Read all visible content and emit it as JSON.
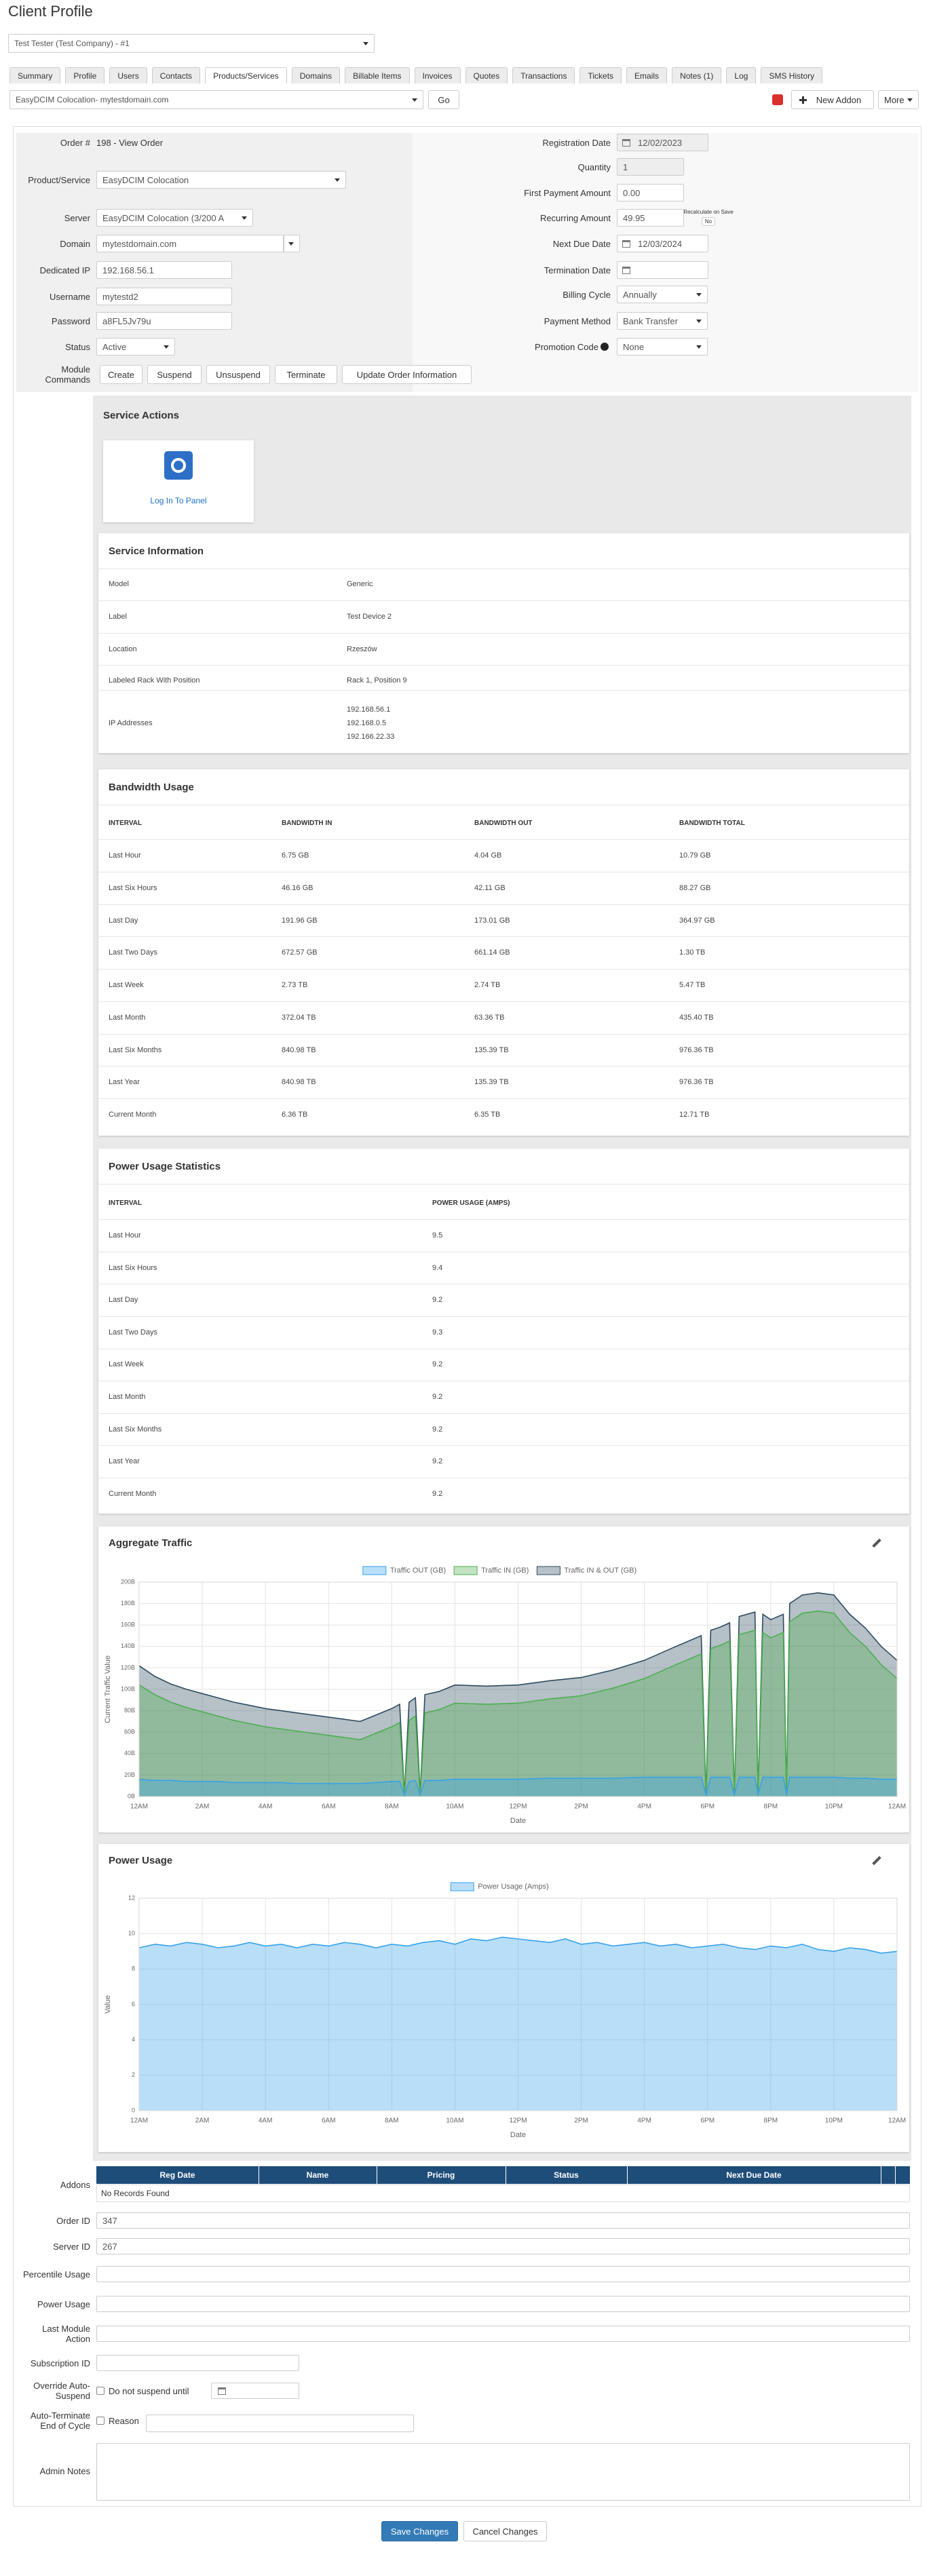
{
  "header": {
    "title": "Client Profile",
    "client_select": "Test Tester (Test Company) - #1"
  },
  "tabs": [
    "Summary",
    "Profile",
    "Users",
    "Contacts",
    "Products/Services",
    "Domains",
    "Billable Items",
    "Invoices",
    "Quotes",
    "Transactions",
    "Tickets",
    "Emails",
    "Notes (1)",
    "Log",
    "SMS History"
  ],
  "toolbar": {
    "service_select": "EasyDCIM Colocation- mytestdomain.com",
    "go": "Go",
    "new_addon": "New Addon",
    "more": "More"
  },
  "form": {
    "left": [
      {
        "label": "Order #",
        "value": "198 - View Order"
      },
      {
        "label": "Product/Service",
        "value": "EasyDCIM Colocation"
      },
      {
        "label": "Server",
        "value": "EasyDCIM Colocation (3/200 A"
      },
      {
        "label": "Domain",
        "value": "mytestdomain.com"
      },
      {
        "label": "Dedicated IP",
        "value": "192.168.56.1"
      },
      {
        "label": "Username",
        "value": "mytestd2"
      },
      {
        "label": "Password",
        "value": "a8FL5Jv79u"
      },
      {
        "label": "Status",
        "value": "Active"
      }
    ],
    "right": [
      {
        "label": "Registration Date",
        "value": "12/02/2023"
      },
      {
        "label": "Quantity",
        "value": "1"
      },
      {
        "label": "First Payment Amount",
        "value": "0.00"
      },
      {
        "label": "Recurring Amount",
        "value": "49.95"
      },
      {
        "label": "Next Due Date",
        "value": "12/03/2024"
      },
      {
        "label": "Termination Date"
      },
      {
        "label": "Billing Cycle",
        "value": "Annually"
      },
      {
        "label": "Payment Method",
        "value": "Bank Transfer"
      },
      {
        "label": "Promotion Code",
        "value": "None"
      }
    ],
    "recalculate": {
      "label": "Recalculate on Save",
      "value": "No"
    },
    "module_commands": {
      "label": "Module Commands",
      "buttons": [
        "Create",
        "Suspend",
        "Unsuspend",
        "Terminate",
        "Update Order Information"
      ]
    }
  },
  "service_actions": {
    "title": "Service Actions",
    "button": "Log In To Panel"
  },
  "service_information": {
    "title": "Service Information",
    "rows": [
      {
        "label": "Model",
        "values": [
          "Generic"
        ]
      },
      {
        "label": "Label",
        "values": [
          "Test Device 2"
        ]
      },
      {
        "label": "Location",
        "values": [
          "Rzeszów"
        ]
      },
      {
        "label": "Labeled Rack With Position",
        "values": [
          "Rack 1, Position 9"
        ]
      },
      {
        "label": "IP Addresses",
        "values": [
          "192.168.56.1",
          "192.168.0.5",
          "192.166.22.33"
        ]
      }
    ]
  },
  "bandwidth_usage": {
    "title": "Bandwidth Usage",
    "columns": [
      "INTERVAL",
      "BANDWIDTH IN",
      "BANDWIDTH OUT",
      "BANDWIDTH TOTAL"
    ],
    "rows": [
      [
        "Last Hour",
        "6.75 GB",
        "4.04 GB",
        "10.79 GB"
      ],
      [
        "Last Six Hours",
        "46.16 GB",
        "42.11 GB",
        "88.27 GB"
      ],
      [
        "Last Day",
        "191.96 GB",
        "173.01 GB",
        "364.97 GB"
      ],
      [
        "Last Two Days",
        "672.57 GB",
        "661.14 GB",
        "1.30 TB"
      ],
      [
        "Last Week",
        "2.73 TB",
        "2.74 TB",
        "5.47 TB"
      ],
      [
        "Last Month",
        "372.04 TB",
        "63.36 TB",
        "435.40 TB"
      ],
      [
        "Last Six Months",
        "840.98 TB",
        "135.39 TB",
        "976.36 TB"
      ],
      [
        "Last Year",
        "840.98 TB",
        "135.39 TB",
        "976.36 TB"
      ],
      [
        "Current Month",
        "6.36 TB",
        "6.35 TB",
        "12.71 TB"
      ]
    ]
  },
  "power_usage_statistics": {
    "title": "Power Usage Statistics",
    "columns": [
      "INTERVAL",
      "POWER USAGE (AMPS)"
    ],
    "rows": [
      [
        "Last Hour",
        "9.5"
      ],
      [
        "Last Six Hours",
        "9.4"
      ],
      [
        "Last Day",
        "9.2"
      ],
      [
        "Last Two Days",
        "9.3"
      ],
      [
        "Last Week",
        "9.2"
      ],
      [
        "Last Month",
        "9.2"
      ],
      [
        "Last Six Months",
        "9.2"
      ],
      [
        "Last Year",
        "9.2"
      ],
      [
        "Current Month",
        "9.2"
      ]
    ]
  },
  "chart_data": [
    {
      "type": "area",
      "title": "Aggregate Traffic",
      "xlabel": "Date",
      "ylabel": "Current Traffic Value",
      "x": [
        0,
        0.5,
        1,
        1.5,
        2,
        2.5,
        3,
        3.5,
        4,
        4.5,
        5,
        5.5,
        6,
        6.5,
        7,
        7.5,
        8,
        8.25,
        8.4,
        8.55,
        8.75,
        8.9,
        9.05,
        9.5,
        10,
        11,
        12,
        13,
        14,
        15,
        16,
        17,
        17.8,
        17.95,
        18.1,
        18.4,
        18.7,
        18.85,
        19,
        19.5,
        19.6,
        19.75,
        20,
        20.4,
        20.5,
        20.6,
        21,
        21.5,
        22,
        22.5,
        23,
        23.5,
        24
      ],
      "xlim": [
        0,
        24
      ],
      "xticks": [
        {
          "value": 0,
          "label": "12AM"
        },
        {
          "value": 2,
          "label": "2AM"
        },
        {
          "value": 4,
          "label": "4AM"
        },
        {
          "value": 6,
          "label": "6AM"
        },
        {
          "value": 8,
          "label": "8AM"
        },
        {
          "value": 10,
          "label": "10AM"
        },
        {
          "value": 12,
          "label": "12PM"
        },
        {
          "value": 14,
          "label": "2PM"
        },
        {
          "value": 16,
          "label": "4PM"
        },
        {
          "value": 18,
          "label": "6PM"
        },
        {
          "value": 20,
          "label": "8PM"
        },
        {
          "value": 22,
          "label": "10PM"
        },
        {
          "value": 24,
          "label": "12AM"
        }
      ],
      "ylim": [
        0,
        200
      ],
      "yticks": [
        {
          "value": 0,
          "label": "0B"
        },
        {
          "value": 20,
          "label": "20B"
        },
        {
          "value": 40,
          "label": "40B"
        },
        {
          "value": 60,
          "label": "60B"
        },
        {
          "value": 80,
          "label": "80B"
        },
        {
          "value": 100,
          "label": "100B"
        },
        {
          "value": 120,
          "label": "120B"
        },
        {
          "value": 140,
          "label": "140B"
        },
        {
          "value": 160,
          "label": "160B"
        },
        {
          "value": 180,
          "label": "180B"
        },
        {
          "value": 200,
          "label": "200B"
        }
      ],
      "grid": true,
      "series": [
        {
          "name": "Traffic OUT (GB)",
          "color": "#36a2eb",
          "values": [
            16,
            15,
            15,
            14,
            14,
            14,
            13,
            13,
            13,
            13,
            12,
            12,
            12,
            12,
            12,
            13,
            14,
            14,
            2,
            14,
            15,
            2,
            15,
            15,
            16,
            16,
            16,
            17,
            17,
            17,
            18,
            18,
            18,
            2,
            18,
            18,
            18,
            2,
            18,
            18,
            2,
            18,
            18,
            18,
            2,
            18,
            18,
            18,
            18,
            17,
            17,
            16,
            16
          ]
        },
        {
          "name": "Traffic IN (GB)",
          "color": "#4caf50",
          "values": [
            104,
            95,
            88,
            83,
            79,
            75,
            71,
            68,
            65,
            63,
            61,
            59,
            57,
            55,
            53,
            59,
            65,
            69,
            0,
            71,
            75,
            0,
            78,
            81,
            87,
            86,
            87,
            91,
            94,
            101,
            110,
            123,
            133,
            0,
            138,
            141,
            145,
            0,
            151,
            155,
            0,
            153,
            148,
            153,
            0,
            163,
            171,
            173,
            171,
            153,
            140,
            123,
            110
          ]
        },
        {
          "name": "Traffic IN & OUT (GB)",
          "color": "#2d4b5f",
          "values": [
            122,
            112,
            105,
            100,
            96,
            92,
            88,
            85,
            82,
            80,
            78,
            76,
            74,
            72,
            70,
            76,
            82,
            86,
            2,
            88,
            92,
            2,
            95,
            98,
            104,
            103,
            104,
            108,
            111,
            118,
            127,
            140,
            150,
            2,
            155,
            158,
            162,
            2,
            168,
            172,
            2,
            170,
            165,
            170,
            2,
            180,
            188,
            190,
            188,
            170,
            157,
            140,
            127
          ]
        }
      ]
    },
    {
      "type": "area",
      "title": "Power Usage",
      "xlabel": "Date",
      "ylabel": "Value",
      "x": [
        0,
        0.5,
        1,
        1.5,
        2,
        2.5,
        3,
        3.5,
        4,
        4.5,
        5,
        5.5,
        6,
        6.5,
        7,
        7.5,
        8,
        8.5,
        9,
        9.5,
        10,
        10.5,
        11,
        11.5,
        12,
        12.5,
        13,
        13.5,
        14,
        14.5,
        15,
        15.5,
        16,
        16.5,
        17,
        17.5,
        18,
        18.5,
        19,
        19.5,
        20,
        20.5,
        21,
        21.5,
        22,
        22.5,
        23,
        23.5,
        24
      ],
      "xlim": [
        0,
        24
      ],
      "xticks": [
        {
          "value": 0,
          "label": "12AM"
        },
        {
          "value": 2,
          "label": "2AM"
        },
        {
          "value": 4,
          "label": "4AM"
        },
        {
          "value": 6,
          "label": "6AM"
        },
        {
          "value": 8,
          "label": "8AM"
        },
        {
          "value": 10,
          "label": "10AM"
        },
        {
          "value": 12,
          "label": "12PM"
        },
        {
          "value": 14,
          "label": "2PM"
        },
        {
          "value": 16,
          "label": "4PM"
        },
        {
          "value": 18,
          "label": "6PM"
        },
        {
          "value": 20,
          "label": "8PM"
        },
        {
          "value": 22,
          "label": "10PM"
        },
        {
          "value": 24,
          "label": "12AM"
        }
      ],
      "ylim": [
        0,
        12
      ],
      "yticks": [
        0,
        2,
        4,
        6,
        8,
        10,
        12
      ],
      "grid": true,
      "series": [
        {
          "name": "Power Usage (Amps)",
          "color": "#36a2eb",
          "values": [
            9.2,
            9.4,
            9.3,
            9.5,
            9.4,
            9.2,
            9.3,
            9.5,
            9.3,
            9.4,
            9.2,
            9.4,
            9.3,
            9.5,
            9.4,
            9.2,
            9.4,
            9.3,
            9.5,
            9.6,
            9.4,
            9.7,
            9.6,
            9.8,
            9.7,
            9.6,
            9.5,
            9.7,
            9.4,
            9.5,
            9.3,
            9.4,
            9.5,
            9.3,
            9.4,
            9.2,
            9.3,
            9.4,
            9.2,
            9.1,
            9.3,
            9.2,
            9.4,
            9.1,
            9.0,
            9.2,
            9.1,
            8.9,
            9.0
          ]
        }
      ]
    }
  ],
  "addons": {
    "label": "Addons",
    "columns": [
      "Reg Date",
      "Name",
      "Pricing",
      "Status",
      "Next Due Date"
    ],
    "empty": "No Records Found"
  },
  "details": [
    {
      "label": "Order ID",
      "value": "347"
    },
    {
      "label": "Server ID",
      "value": "267"
    },
    {
      "label": "Percentile Usage"
    },
    {
      "label": "Power Usage"
    },
    {
      "label": "Last Module Action"
    },
    {
      "label": "Subscription ID"
    }
  ],
  "override_auto_suspend": {
    "label": "Override Auto-Suspend",
    "checkbox": "Do not suspend until"
  },
  "auto_terminate": {
    "label": "Auto-Terminate End of Cycle",
    "checkbox": "Reason"
  },
  "admin_notes": {
    "label": "Admin Notes"
  },
  "footer": {
    "save": "Save Changes",
    "cancel": "Cancel Changes"
  }
}
